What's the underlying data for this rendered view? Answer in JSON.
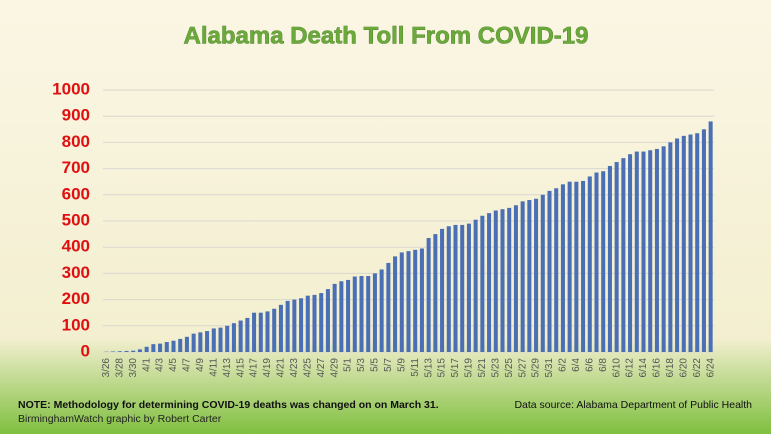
{
  "chart_data": {
    "type": "bar",
    "title": "Alabama Death Toll From COVID-19",
    "categories": [
      "3/26",
      null,
      "3/28",
      null,
      "3/30",
      null,
      "4/1",
      null,
      "4/3",
      null,
      "4/5",
      null,
      "4/7",
      null,
      "4/9",
      null,
      "4/11",
      null,
      "4/13",
      null,
      "4/15",
      null,
      "4/17",
      null,
      "4/19",
      null,
      "4/21",
      null,
      "4/23",
      null,
      "4/25",
      null,
      "4/27",
      null,
      "4/29",
      null,
      "5/1",
      null,
      "5/3",
      null,
      "5/5",
      null,
      "5/7",
      null,
      "5/9",
      null,
      "5/11",
      null,
      "5/13",
      null,
      "5/15",
      null,
      "5/17",
      null,
      "5/19",
      null,
      "5/21",
      null,
      "5/23",
      null,
      "5/25",
      null,
      "5/27",
      null,
      "5/29",
      null,
      "5/31",
      null,
      "6/2",
      null,
      "6/4",
      null,
      "6/6",
      null,
      "6/8",
      null,
      "6/10",
      null,
      "6/12",
      null,
      "6/14",
      null,
      "6/16",
      null,
      "6/18",
      null,
      "6/20",
      null,
      "6/22",
      null,
      "6/24"
    ],
    "values": [
      1,
      2,
      3,
      4,
      5,
      10,
      20,
      30,
      32,
      38,
      43,
      50,
      58,
      70,
      75,
      80,
      90,
      93,
      100,
      110,
      120,
      130,
      150,
      150,
      155,
      165,
      180,
      195,
      200,
      205,
      215,
      218,
      225,
      240,
      260,
      270,
      275,
      288,
      290,
      290,
      300,
      315,
      340,
      365,
      380,
      385,
      390,
      395,
      435,
      450,
      470,
      480,
      485,
      485,
      490,
      505,
      520,
      530,
      540,
      545,
      550,
      560,
      575,
      580,
      585,
      600,
      615,
      625,
      640,
      650,
      650,
      653,
      670,
      685,
      690,
      710,
      725,
      740,
      755,
      765,
      765,
      770,
      775,
      785,
      800,
      815,
      825,
      830,
      835,
      850,
      880
    ],
    "color": "#4a6fb5",
    "ylim": [
      0,
      1000
    ],
    "yticks": [
      0,
      100,
      200,
      300,
      400,
      500,
      600,
      700,
      800,
      900,
      1000
    ],
    "grid": true,
    "note": "NOTE: Methodology for determining COVID-19 deaths was changed on on March 31.",
    "credit": "BirminghamWatch graphic by Robert Carter",
    "source": "Data source: Alabama Department of Public Health"
  }
}
